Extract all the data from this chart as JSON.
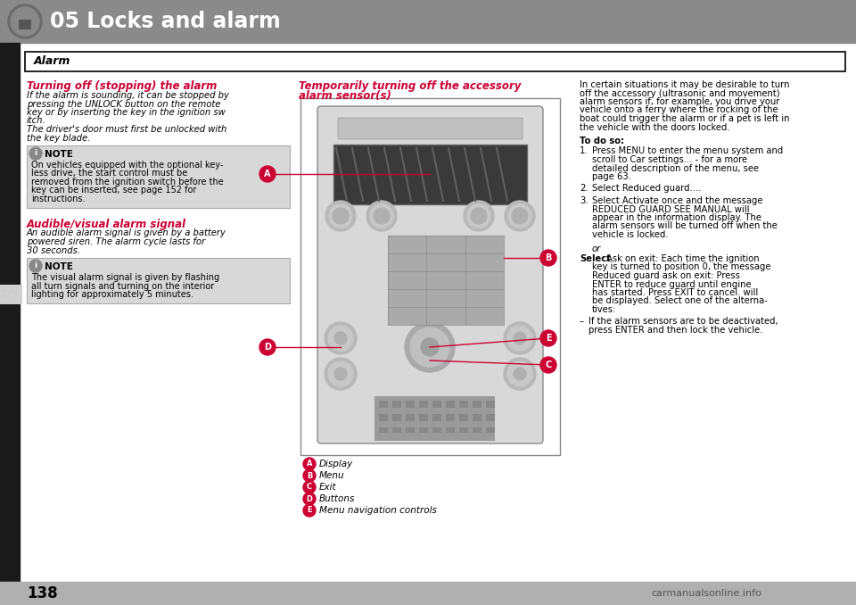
{
  "bg_color": "#1a1a1a",
  "page_bg": "#ffffff",
  "header_bg": "#8a8a8a",
  "header_text": "05 Locks and alarm",
  "header_text_color": "#ffffff",
  "left_bar_color": "#c8c8c8",
  "alarm_box_text": "Alarm",
  "section1_title": "Turning off (stopping) the alarm",
  "section1_title_color": "#cc0033",
  "section1_body": "If the alarm is sounding, it can be stopped by\npressing the UNLOCK button on the remote\nkey or by inserting the key in the ignition sw\nitch.\nThe driver's door must first be unlocked with\nthe key blade.",
  "note_bg": "#d8d8d8",
  "note_title": "NOTE",
  "note1_body": "On vehicles equipped with the optional key-\nless drive, the start control must be\nremoved from the ignition switch before the\nkey can be inserted, see page 152 for\ninstructions.",
  "section2_title": "Audible/visual alarm signal",
  "section2_title_color": "#cc0033",
  "section2_body": "An audible alarm signal is given by a battery\npowered siren. The alarm cycle lasts for\n30 seconds.",
  "note2_body": "The visual alarm signal is given by flashing\nall turn signals and turning on the interior\nlighting for approximately 5 minutes.",
  "mid_title1": "Temporarily turning off the accessory",
  "mid_title2": "alarm sensor(s)",
  "mid_title_color": "#cc0033",
  "label_A": "Display",
  "label_B": "Menu",
  "label_C": "Exit",
  "label_D": "Buttons",
  "label_E": "Menu navigation controls",
  "dot_color": "#cc0033",
  "right_body1": "In certain situations it may be desirable to turn\noff the accessory (ultrasonic and movement)\nalarm sensors if, for example, you drive your\nvehicle onto a ferry where the rocking of the\nboat could trigger the alarm or if a pet is left in\nthe vehicle with the doors locked.",
  "right_body2": "To do so:",
  "right_list1": "Press MENU to enter the menu system and\nscroll to Car settings... - for a more\ndetailed description of the menu, see\npage 63.",
  "right_list2": "Select Reduced guard....",
  "right_list3": "Select Activate once and the message\nREDUCED GUARD SEE MANUAL will\nappear in the information display. The\nalarm sensors will be turned off when the\nvehicle is locked.",
  "right_or": "or",
  "right_list4": "Select Ask on exit: Each time the ignition\nkey is turned to position 0, the message\nReduced guard ask on exit: Press\nENTER to reduce guard until engine\nhas started. Press EXIT to cancel. will\nbe displayed. Select one of the alterna-\ntives:",
  "right_bullet": "If the alarm sensors are to be deactivated,\npress ENTER and then lock the vehicle.",
  "page_num": "138",
  "section_num": "05",
  "watermark": "carmanualsonline.info"
}
